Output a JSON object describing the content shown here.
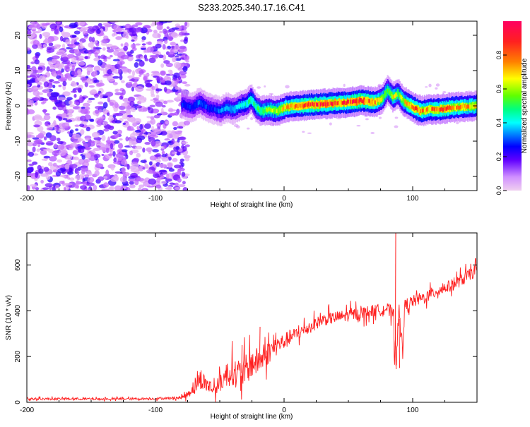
{
  "title": "S233.2025.340.17.16.C41",
  "chart_data": [
    {
      "type": "heatmap",
      "xlabel": "Height of straight line (km)",
      "ylabel": "Frequency (Hz)",
      "xlim": [
        -200,
        150
      ],
      "ylim": [
        -24,
        24
      ],
      "xticks": [
        -200,
        -100,
        0,
        100
      ],
      "xtick_labels": [
        "-200",
        "-100",
        "0",
        "100"
      ],
      "yticks": [
        -20,
        -10,
        0,
        10,
        20
      ],
      "ytick_labels": [
        "-20",
        "-10",
        "0",
        "10",
        "20"
      ],
      "colorbar": {
        "label": "Normalized spectral amplitude",
        "range": [
          0,
          1
        ],
        "ticks": [
          0.0,
          0.2,
          0.4,
          0.6,
          0.8
        ],
        "tick_labels": [
          "0.0",
          "0.2",
          "0.4",
          "0.6",
          "0.8"
        ],
        "colors": [
          "#f0d0f0",
          "#c060ff",
          "#6000ff",
          "#0000ff",
          "#0090ff",
          "#00ffff",
          "#00ff80",
          "#60ff00",
          "#ffff00",
          "#ff8000",
          "#ff2020",
          "#ff0060"
        ]
      },
      "noise_region_x": [
        -200,
        -75
      ],
      "ridge": {
        "name": "Doppler signal ridge",
        "x": [
          -80,
          -72,
          -66,
          -60,
          -55,
          -50,
          -45,
          -40,
          -35,
          -30,
          -26,
          -22,
          -18,
          -12,
          -6,
          0,
          6,
          12,
          20,
          30,
          40,
          50,
          60,
          70,
          76,
          80,
          84,
          88,
          92,
          96,
          100,
          106,
          112,
          120,
          130,
          140,
          150
        ],
        "freq": [
          0.5,
          -0.5,
          1.0,
          -0.5,
          -1.0,
          -1.5,
          -0.5,
          -1.0,
          0.0,
          0.5,
          2.0,
          -0.5,
          -1.5,
          -1.0,
          -1.5,
          -0.5,
          0.0,
          0.0,
          0.3,
          0.5,
          0.8,
          1.0,
          1.5,
          1.0,
          2.0,
          4.5,
          2.5,
          3.5,
          1.5,
          0.5,
          -0.5,
          -1.5,
          -1.0,
          -1.0,
          -0.5,
          -0.2,
          0.0
        ],
        "amp": [
          0.3,
          0.3,
          0.35,
          0.3,
          0.3,
          0.35,
          0.4,
          0.4,
          0.45,
          0.5,
          0.55,
          0.55,
          0.6,
          0.65,
          0.7,
          0.75,
          0.8,
          0.85,
          0.9,
          0.9,
          0.88,
          0.9,
          0.92,
          0.85,
          0.7,
          0.6,
          0.75,
          0.65,
          0.7,
          0.8,
          0.85,
          0.85,
          0.8,
          0.85,
          0.85,
          0.8,
          0.75
        ]
      }
    },
    {
      "type": "line",
      "xlabel": "Height of straight line (km)",
      "ylabel": "SNR (10 * v/v)",
      "xlim": [
        -200,
        150
      ],
      "ylim": [
        0,
        740
      ],
      "xticks": [
        -200,
        -100,
        0,
        100
      ],
      "xtick_labels": [
        "-200",
        "-100",
        "0",
        "100"
      ],
      "yticks": [
        0,
        200,
        400,
        600
      ],
      "ytick_labels": [
        "0",
        "200",
        "400",
        "600"
      ],
      "series": [
        {
          "name": "SNR",
          "color": "#ff2020",
          "x": [
            -200,
            -180,
            -160,
            -140,
            -120,
            -100,
            -90,
            -80,
            -75,
            -70,
            -65,
            -60,
            -55,
            -50,
            -45,
            -40,
            -35,
            -30,
            -25,
            -20,
            -15,
            -10,
            -5,
            0,
            5,
            10,
            20,
            30,
            40,
            50,
            60,
            70,
            80,
            85,
            86,
            87,
            88,
            89,
            90,
            92,
            94,
            96,
            100,
            110,
            120,
            130,
            140,
            150
          ],
          "y": [
            15,
            15,
            15,
            14,
            15,
            16,
            18,
            20,
            35,
            70,
            100,
            80,
            55,
            80,
            120,
            135,
            120,
            140,
            170,
            180,
            200,
            230,
            250,
            265,
            285,
            300,
            330,
            360,
            370,
            380,
            390,
            400,
            410,
            380,
            300,
            200,
            330,
            400,
            330,
            250,
            420,
            430,
            440,
            460,
            490,
            510,
            540,
            580
          ],
          "noise": [
            8,
            8,
            8,
            8,
            8,
            8,
            8,
            10,
            25,
            60,
            70,
            60,
            50,
            60,
            90,
            100,
            110,
            110,
            110,
            100,
            90,
            80,
            70,
            60,
            55,
            50,
            45,
            45,
            45,
            45,
            45,
            45,
            45,
            60,
            120,
            160,
            160,
            80,
            120,
            60,
            50,
            50,
            45,
            45,
            45,
            45,
            45,
            45
          ],
          "spikes": [
            {
              "x": 86.5,
              "y": 740
            },
            {
              "x": 86.8,
              "y": 145
            },
            {
              "x": 89.5,
              "y": 150
            },
            {
              "x": -19,
              "y": 330
            },
            {
              "x": -33,
              "y": 250
            }
          ]
        }
      ]
    }
  ]
}
